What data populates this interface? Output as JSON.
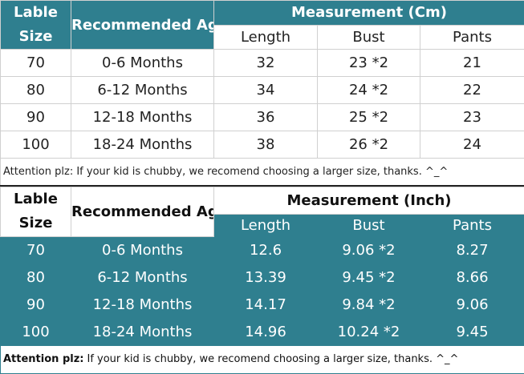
{
  "table1": {
    "header": {
      "size": "Lable Size",
      "age": "Recommended Age",
      "measurement": "Measurement (Cm)",
      "columns": [
        "Length",
        "Bust",
        "Pants"
      ]
    },
    "rows": [
      [
        70,
        "0-6 Months",
        32,
        "23 *2",
        21
      ],
      [
        80,
        "6-12 Months",
        34,
        "24 *2",
        22
      ],
      [
        90,
        "12-18 Months",
        36,
        "25 *2",
        23
      ],
      [
        100,
        "18-24 Months",
        38,
        "26 *2",
        24
      ]
    ],
    "note": "Attention plz: If your kid is chubby, we recomend choosing a larger size, thanks. ^_^"
  },
  "table2": {
    "header": {
      "size": "Lable Size",
      "age": "Recommended Age",
      "measurement": "Measurement (Inch)",
      "columns": [
        "Length",
        "Bust",
        "Pants"
      ]
    },
    "rows": [
      [
        70,
        "0-6 Months",
        12.6,
        "9.06 *2",
        8.27
      ],
      [
        80,
        "6-12 Months",
        13.39,
        "9.45 *2",
        8.66
      ],
      [
        90,
        "12-18 Months",
        14.17,
        "9.84 *2",
        9.06
      ],
      [
        100,
        "18-24 Months",
        14.96,
        "10.24 *2",
        9.45
      ]
    ],
    "note": {
      "label": "Attention plz:",
      "text": "If your kid is chubby, we recomend choosing a larger size, thanks. ^_^"
    }
  }
}
